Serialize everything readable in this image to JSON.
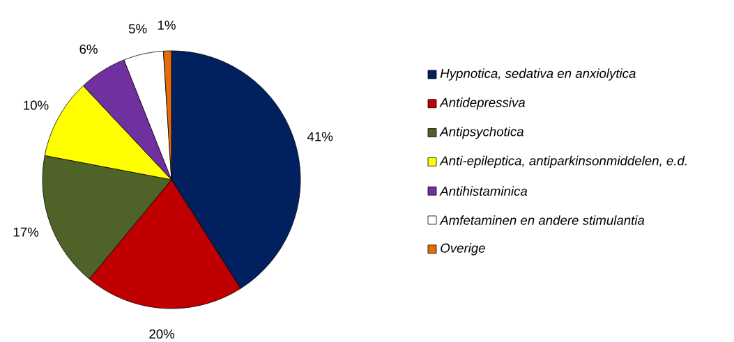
{
  "chart_data": {
    "type": "pie",
    "categories": [
      "Hypnotica, sedativa en anxiolytica",
      "Antidepressiva",
      "Antipsychotica",
      "Anti-epileptica, antiparkinsonmiddelen, e.d.",
      "Antihistaminica",
      "Amfetaminen en andere stimulantia",
      "Overige"
    ],
    "values": [
      41,
      20,
      17,
      10,
      6,
      5,
      1
    ],
    "value_labels": [
      "41%",
      "20%",
      "17%",
      "10%",
      "6%",
      "5%",
      "1%"
    ],
    "colors": [
      "#002060",
      "#c00000",
      "#4f6228",
      "#ffff00",
      "#7030a0",
      "#ffffff",
      "#e46c0a"
    ],
    "legend": "right"
  }
}
